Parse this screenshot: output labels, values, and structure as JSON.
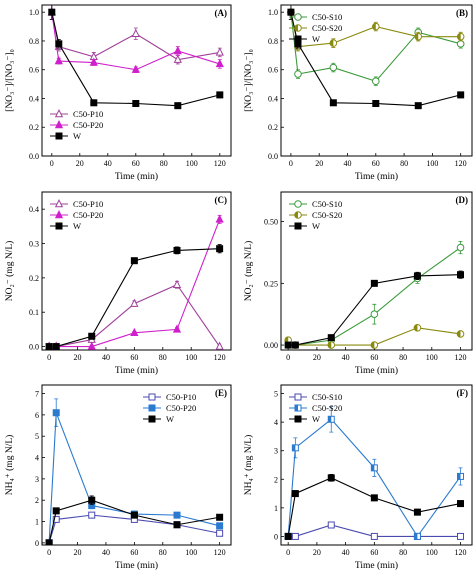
{
  "chart_data": [
    {
      "type": "line",
      "panel_label": "(A)",
      "xlabel": "Time (min)",
      "ylabel": "[NO₃⁻]/[NO₃⁻]₀",
      "xlim": [
        -7,
        128
      ],
      "ylim": [
        0,
        1.05
      ],
      "xticks": [
        0,
        20,
        40,
        60,
        80,
        100,
        120
      ],
      "yticks": [
        0,
        0.2,
        0.4,
        0.6,
        0.8,
        1.0
      ],
      "ytick_labels": [
        "0.0",
        "0.2",
        "0.4",
        "0.6",
        "0.8",
        "1.0"
      ],
      "legend_position": "bottom-left",
      "series": [
        {
          "name": "C50-P10",
          "color": "#a0409a",
          "marker": "triangle-open",
          "x": [
            0,
            5,
            30,
            60,
            90,
            120
          ],
          "y": [
            1.0,
            0.76,
            0.69,
            0.85,
            0.67,
            0.72
          ],
          "err": [
            0.05,
            0.03,
            0.03,
            0.04,
            0.03,
            0.03
          ]
        },
        {
          "name": "C50-P20",
          "color": "#d020cc",
          "marker": "triangle-filled",
          "x": [
            0,
            5,
            30,
            60,
            90,
            120
          ],
          "y": [
            1.0,
            0.66,
            0.65,
            0.6,
            0.73,
            0.64
          ],
          "err": [
            0.05,
            0.02,
            0.02,
            0.02,
            0.03,
            0.03
          ]
        },
        {
          "name": "W",
          "color": "#000000",
          "marker": "square-filled",
          "x": [
            0,
            5,
            30,
            60,
            90,
            120
          ],
          "y": [
            1.0,
            0.78,
            0.37,
            0.365,
            0.35,
            0.425
          ],
          "err": [
            0.05,
            0.03,
            0.01,
            0.01,
            0.01,
            0.02
          ]
        }
      ]
    },
    {
      "type": "line",
      "panel_label": "(B)",
      "xlabel": "Time (min)",
      "ylabel": "[NO₃⁻]/[NO₃⁻]₀",
      "xlim": [
        -7,
        128
      ],
      "ylim": [
        0,
        1.05
      ],
      "xticks": [
        0,
        20,
        40,
        60,
        80,
        100,
        120
      ],
      "yticks": [
        0,
        0.2,
        0.4,
        0.6,
        0.8,
        1.0
      ],
      "ytick_labels": [
        "0.0",
        "0.2",
        "0.4",
        "0.6",
        "0.8",
        "1.0"
      ],
      "legend_position": "top-left",
      "series": [
        {
          "name": "C50-S10",
          "color": "#3a9a3a",
          "marker": "circle-open",
          "x": [
            0,
            5,
            30,
            60,
            90,
            120
          ],
          "y": [
            1.0,
            0.57,
            0.615,
            0.52,
            0.86,
            0.78
          ],
          "err": [
            0.05,
            0.03,
            0.03,
            0.03,
            0.03,
            0.03
          ]
        },
        {
          "name": "C50-S20",
          "color": "#8a8a10",
          "marker": "circle-half",
          "x": [
            0,
            5,
            30,
            60,
            90,
            120
          ],
          "y": [
            1.0,
            0.76,
            0.785,
            0.9,
            0.83,
            0.83
          ],
          "err": [
            0.05,
            0.03,
            0.03,
            0.03,
            0.03,
            0.03
          ]
        },
        {
          "name": "W",
          "color": "#000000",
          "marker": "square-filled",
          "x": [
            0,
            5,
            30,
            60,
            90,
            120
          ],
          "y": [
            1.0,
            0.78,
            0.37,
            0.365,
            0.35,
            0.425
          ],
          "err": [
            0.05,
            0.03,
            0.01,
            0.01,
            0.01,
            0.02
          ]
        }
      ]
    },
    {
      "type": "line",
      "panel_label": "(C)",
      "xlabel": "Time (min)",
      "ylabel": "NO₂⁻ (mg N/L)",
      "xlim": [
        -5,
        128
      ],
      "ylim": [
        -0.01,
        0.45
      ],
      "xticks": [
        0,
        20,
        40,
        60,
        80,
        100,
        120
      ],
      "yticks": [
        0,
        0.1,
        0.2,
        0.3,
        0.4
      ],
      "ytick_labels": [
        "0.0",
        "0.1",
        "0.2",
        "0.3",
        "0.4"
      ],
      "legend_position": "top-left",
      "series": [
        {
          "name": "C50-P10",
          "color": "#a0409a",
          "marker": "triangle-open",
          "x": [
            0,
            5,
            30,
            60,
            90,
            120
          ],
          "y": [
            0.0,
            0.0,
            0.02,
            0.125,
            0.18,
            0.0
          ],
          "err": [
            0.003,
            0.003,
            0.004,
            0.008,
            0.01,
            0.003
          ]
        },
        {
          "name": "C50-P20",
          "color": "#d020cc",
          "marker": "triangle-filled",
          "x": [
            0,
            5,
            30,
            60,
            90,
            120
          ],
          "y": [
            0.0,
            0.0,
            0.0,
            0.04,
            0.05,
            0.37
          ],
          "err": [
            0.003,
            0.003,
            0.003,
            0.004,
            0.005,
            0.012
          ]
        },
        {
          "name": "W",
          "color": "#000000",
          "marker": "square-filled",
          "x": [
            0,
            5,
            30,
            60,
            90,
            120
          ],
          "y": [
            0.0,
            0.0,
            0.03,
            0.25,
            0.28,
            0.285
          ],
          "err": [
            0.003,
            0.003,
            0.004,
            0.008,
            0.01,
            0.012
          ]
        }
      ]
    },
    {
      "type": "line",
      "panel_label": "(D)",
      "xlabel": "Time (min)",
      "ylabel": "NO₂⁻ (mg N/L)",
      "xlim": [
        -5,
        128
      ],
      "ylim": [
        -0.02,
        0.62
      ],
      "xticks": [
        0,
        20,
        40,
        60,
        80,
        100,
        120
      ],
      "yticks": [
        0,
        0.25,
        0.5
      ],
      "ytick_labels": [
        "0.00",
        "0.25",
        "0.50"
      ],
      "legend_position": "top-left",
      "series": [
        {
          "name": "C50-S10",
          "color": "#3a9a3a",
          "marker": "circle-open",
          "x": [
            0,
            5,
            30,
            60,
            90,
            120
          ],
          "y": [
            0.0,
            0.0,
            0.02,
            0.125,
            0.27,
            0.395
          ],
          "err": [
            0.005,
            0.005,
            0.01,
            0.04,
            0.02,
            0.025
          ]
        },
        {
          "name": "C50-S20",
          "color": "#8a8a10",
          "marker": "circle-half",
          "x": [
            0,
            5,
            30,
            60,
            90,
            120
          ],
          "y": [
            0.02,
            0.0,
            0.0,
            0.0,
            0.07,
            0.045
          ],
          "err": [
            0.01,
            0.005,
            0.005,
            0.005,
            0.006,
            0.005
          ]
        },
        {
          "name": "W",
          "color": "#000000",
          "marker": "square-filled",
          "x": [
            0,
            5,
            30,
            60,
            90,
            120
          ],
          "y": [
            0.0,
            0.0,
            0.03,
            0.25,
            0.28,
            0.285
          ],
          "err": [
            0.005,
            0.005,
            0.006,
            0.01,
            0.015,
            0.015
          ]
        }
      ]
    },
    {
      "type": "line",
      "panel_label": "(E)",
      "xlabel": "Time (min)",
      "ylabel": "NH₄⁺ (mg N/L)",
      "xlim": [
        -5,
        128
      ],
      "ylim": [
        -0.1,
        7.4
      ],
      "xticks": [
        0,
        20,
        40,
        60,
        80,
        100,
        120
      ],
      "yticks": [
        0,
        1,
        2,
        3,
        4,
        5,
        6,
        7
      ],
      "ytick_labels": [
        "0",
        "1",
        "2",
        "3",
        "4",
        "5",
        "6",
        "7"
      ],
      "legend_position": "top-right",
      "series": [
        {
          "name": "C50-P10",
          "color": "#4a4ab0",
          "marker": "square-open",
          "x": [
            0,
            5,
            30,
            60,
            90,
            120
          ],
          "y": [
            0.0,
            1.1,
            1.3,
            1.1,
            0.85,
            0.45
          ],
          "err": [
            0.05,
            0.1,
            0.1,
            0.1,
            0.1,
            0.1
          ]
        },
        {
          "name": "C50-P20",
          "color": "#2a7ad0",
          "marker": "square-filled",
          "x": [
            0,
            5,
            30,
            60,
            90,
            120
          ],
          "y": [
            0.0,
            6.1,
            1.75,
            1.35,
            1.3,
            0.8
          ],
          "err": [
            0.05,
            0.65,
            0.15,
            0.1,
            0.1,
            0.1
          ]
        },
        {
          "name": "W",
          "color": "#000000",
          "marker": "square-filled",
          "x": [
            0,
            5,
            30,
            60,
            90,
            120
          ],
          "y": [
            0.0,
            1.5,
            2.0,
            1.3,
            0.85,
            1.2
          ],
          "err": [
            0.05,
            0.1,
            0.2,
            0.1,
            0.1,
            0.1
          ]
        }
      ]
    },
    {
      "type": "line",
      "panel_label": "(F)",
      "xlabel": "Time (min)",
      "ylabel": "NH₄⁺ (mg N/L)",
      "xlim": [
        -5,
        128
      ],
      "ylim": [
        -0.3,
        5.3
      ],
      "xticks": [
        0,
        20,
        40,
        60,
        80,
        100,
        120
      ],
      "yticks": [
        0,
        1,
        2,
        3,
        4,
        5
      ],
      "ytick_labels": [
        "0",
        "1",
        "2",
        "3",
        "4",
        "5"
      ],
      "legend_position": "top-left",
      "series": [
        {
          "name": "C50-S10",
          "color": "#4a4ab0",
          "marker": "square-open",
          "x": [
            0,
            5,
            30,
            60,
            90,
            120
          ],
          "y": [
            0.0,
            0.0,
            0.4,
            0.0,
            0.0,
            0.0
          ],
          "err": [
            0.05,
            0.05,
            0.05,
            0.05,
            0.05,
            0.05
          ]
        },
        {
          "name": "C50-S20",
          "color": "#2a7ad0",
          "marker": "square-half",
          "x": [
            0,
            5,
            30,
            60,
            90,
            120
          ],
          "y": [
            0.0,
            3.1,
            4.1,
            2.4,
            0.0,
            2.1
          ],
          "err": [
            0.05,
            0.35,
            0.45,
            0.3,
            0.05,
            0.3
          ]
        },
        {
          "name": "W",
          "color": "#000000",
          "marker": "square-filled",
          "x": [
            0,
            5,
            30,
            60,
            90,
            120
          ],
          "y": [
            0.0,
            1.5,
            2.05,
            1.35,
            0.85,
            1.15
          ],
          "err": [
            0.05,
            0.1,
            0.12,
            0.1,
            0.1,
            0.1
          ]
        }
      ]
    }
  ]
}
